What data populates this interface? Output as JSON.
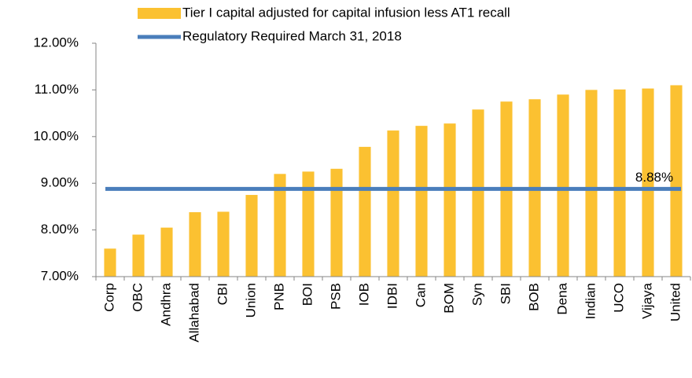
{
  "chart_data": {
    "type": "bar",
    "categories": [
      "Corp",
      "OBC",
      "Andhra",
      "Allahabad",
      "CBI",
      "Union",
      "PNB",
      "BOI",
      "PSB",
      "IOB",
      "IDBI",
      "Can",
      "BOM",
      "Syn",
      "SBI",
      "BOB",
      "Dena",
      "Indian",
      "UCO",
      "Vijaya",
      "United"
    ],
    "series": [
      {
        "name": "Tier I capital adjusted for capital infusion less AT1 recall",
        "color": "#fbc131",
        "values": [
          7.6,
          7.9,
          8.05,
          8.38,
          8.39,
          8.75,
          9.2,
          9.25,
          9.31,
          9.78,
          10.13,
          10.23,
          10.28,
          10.58,
          10.75,
          10.8,
          10.9,
          11.0,
          11.01,
          11.03,
          11.1
        ]
      },
      {
        "name": "Regulatory Required March 31, 2018",
        "color": "#4a7ebb",
        "type": "line",
        "value": 8.88,
        "value_label": "8.88%"
      }
    ],
    "ylim": [
      7,
      12
    ],
    "yticks": [
      {
        "value": 7,
        "label": "7.00%"
      },
      {
        "value": 8,
        "label": "8.00%"
      },
      {
        "value": 9,
        "label": "9.00%"
      },
      {
        "value": 10,
        "label": "10.00%"
      },
      {
        "value": 11,
        "label": "11.00%"
      },
      {
        "value": 12,
        "label": "12.00%"
      }
    ],
    "grid": false
  }
}
